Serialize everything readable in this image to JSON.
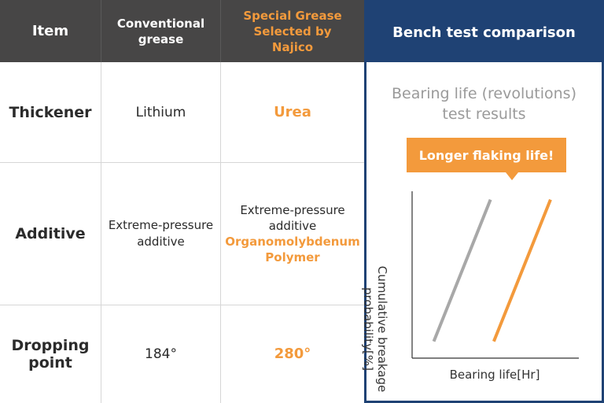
{
  "table": {
    "headers": {
      "item": "Item",
      "conventional": "Conventional grease",
      "special": "Special Grease Selected by Najico"
    },
    "rows": [
      {
        "label": "Thickener",
        "conventional": "Lithium",
        "special_lines": [
          "Urea"
        ],
        "special_orange": true
      },
      {
        "label": "Additive",
        "conventional": "Extreme-pressure additive",
        "special_plain": "Extreme-pressure additive",
        "special_highlight": [
          "Organomolybdenum",
          "Polymer"
        ]
      },
      {
        "label": "Dropping point",
        "conventional": "184°",
        "special_lines": [
          "280°"
        ],
        "special_orange": true
      }
    ]
  },
  "panel": {
    "title": "Bench test comparison",
    "subtitle_line1": "Bearing life (revolutions)",
    "subtitle_line2": "test results",
    "callout": "Longer flaking life!"
  },
  "chart_data": {
    "type": "line",
    "title": "",
    "xlabel": "Bearing life[Hr]",
    "ylabel": "Cumulative breakage probability[%]",
    "series": [
      {
        "color": "#a8a8a8",
        "x": [
          0.13,
          0.47
        ],
        "y": [
          0.1,
          0.95
        ]
      },
      {
        "color": "#f39a3c",
        "x": [
          0.49,
          0.83
        ],
        "y": [
          0.1,
          0.95
        ]
      }
    ],
    "xlim": [
      0,
      1
    ],
    "ylim": [
      0,
      1
    ],
    "grid": false
  },
  "colors": {
    "orange": "#f39a3c",
    "navy": "#1f4274",
    "header_gray": "#474646",
    "series_gray": "#a8a8a8"
  }
}
